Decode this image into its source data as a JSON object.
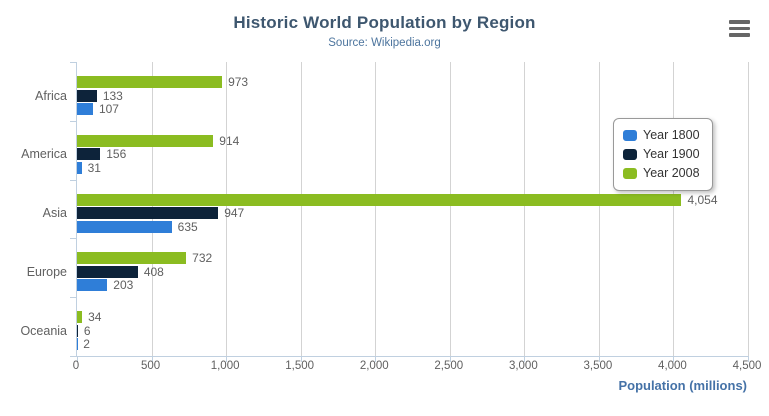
{
  "header": {
    "title": "Historic World Population by Region",
    "subtitle": "Source: Wikipedia.org"
  },
  "menu": {
    "icon": "hamburger-menu-icon"
  },
  "colors": {
    "title_text": "#3e576f",
    "subtitle_text": "#4d759e",
    "axis_line": "#c0d0e0",
    "gridline": "#d3d3d3",
    "tick_label": "#606060",
    "data_label": "#606060",
    "axis_title_text": "#4572a7",
    "legend_border": "#999999",
    "legend_text": "#333333",
    "menu_icon": "#666666"
  },
  "chart_data": {
    "type": "bar",
    "orientation": "horizontal",
    "title": "Historic World Population by Region",
    "subtitle": "Source: Wikipedia.org",
    "categories": [
      "Africa",
      "America",
      "Asia",
      "Europe",
      "Oceania"
    ],
    "series": [
      {
        "name": "Year 1800",
        "color": "#2f7ed8",
        "values": [
          107,
          31,
          635,
          203,
          2
        ]
      },
      {
        "name": "Year 1900",
        "color": "#0d233a",
        "values": [
          133,
          156,
          947,
          408,
          6
        ]
      },
      {
        "name": "Year 2008",
        "color": "#8bbc21",
        "values": [
          973,
          914,
          4054,
          732,
          34
        ]
      }
    ],
    "bar_order_top_to_bottom": [
      "Year 2008",
      "Year 1900",
      "Year 1800"
    ],
    "data_labels_visible": true,
    "xlabel": "Population (millions)",
    "ylabel": "",
    "xlim": [
      0,
      4500
    ],
    "xticks": [
      0,
      500,
      1000,
      1500,
      2000,
      2500,
      3000,
      3500,
      4000,
      4500
    ],
    "grid": true,
    "legend_position": "right-middle",
    "number_format": "thousands-comma"
  }
}
